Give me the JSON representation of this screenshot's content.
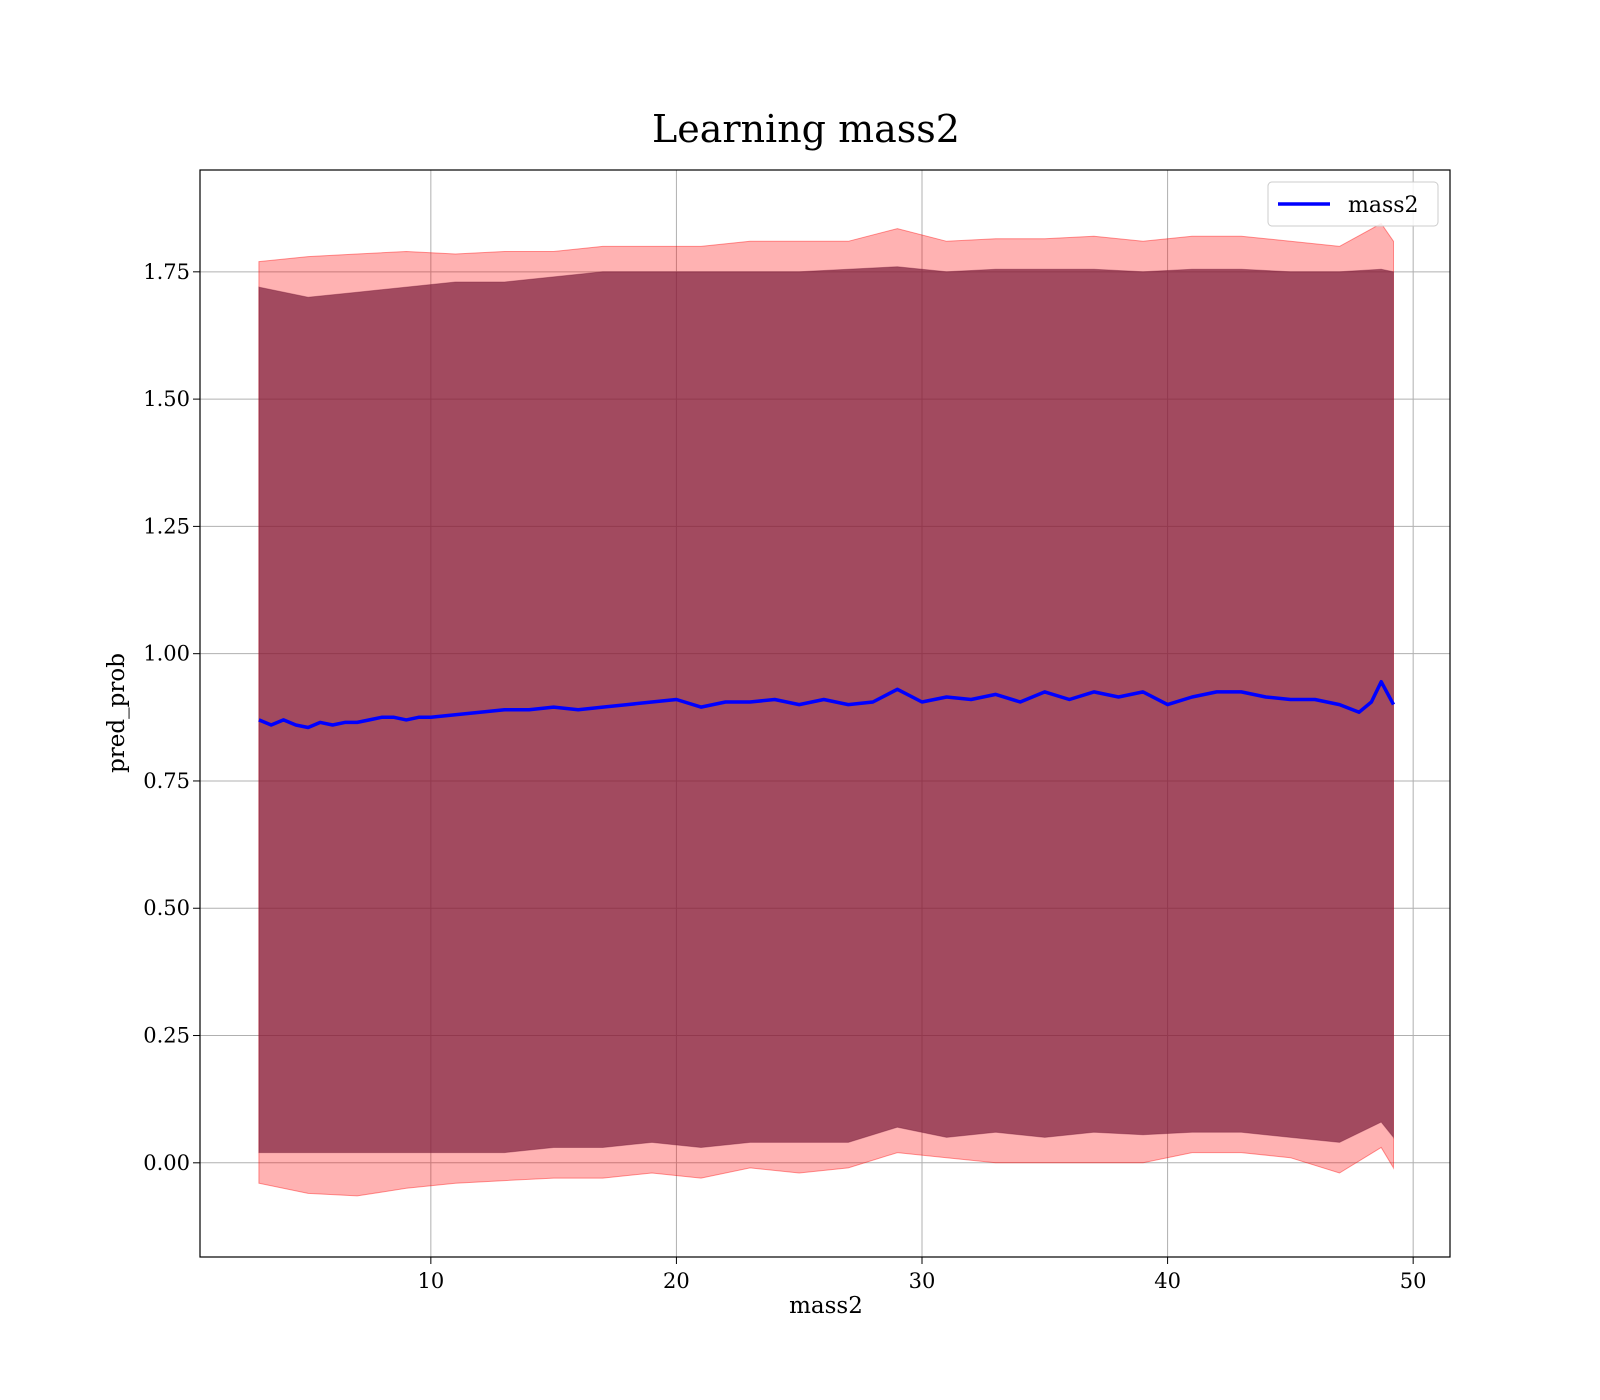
{
  "chart_data": {
    "type": "line",
    "title": "Learning mass2",
    "xlabel": "mass2",
    "ylabel": "pred_prob",
    "xlim": [
      0.6,
      51.5
    ],
    "ylim": [
      -0.185,
      1.95
    ],
    "xticks": [
      10,
      20,
      30,
      40,
      50
    ],
    "yticks": [
      0.0,
      0.25,
      0.5,
      0.75,
      1.0,
      1.25,
      1.5,
      1.75
    ],
    "xtick_labels": [
      "10",
      "20",
      "30",
      "40",
      "50"
    ],
    "ytick_labels": [
      "0.00",
      "0.25",
      "0.50",
      "0.75",
      "1.00",
      "1.25",
      "1.50",
      "1.75"
    ],
    "grid": true,
    "legend": {
      "placement": "top-right",
      "entries": [
        "mass2"
      ]
    },
    "series": [
      {
        "name": "mass2",
        "kind": "line",
        "color": "#0000ff",
        "x": [
          3.0,
          3.5,
          4.0,
          4.5,
          5.0,
          5.5,
          6.0,
          6.5,
          7.0,
          7.5,
          8.0,
          8.5,
          9.0,
          9.5,
          10.0,
          11.0,
          12.0,
          13.0,
          14.0,
          15.0,
          16.0,
          17.0,
          18.0,
          19.0,
          20.0,
          21.0,
          22.0,
          23.0,
          24.0,
          25.0,
          26.0,
          27.0,
          28.0,
          29.0,
          30.0,
          31.0,
          32.0,
          33.0,
          34.0,
          35.0,
          36.0,
          37.0,
          38.0,
          39.0,
          40.0,
          41.0,
          42.0,
          43.0,
          44.0,
          45.0,
          46.0,
          47.0,
          47.8,
          48.3,
          48.7,
          49.2
        ],
        "y": [
          0.87,
          0.86,
          0.87,
          0.86,
          0.855,
          0.865,
          0.86,
          0.865,
          0.865,
          0.87,
          0.875,
          0.875,
          0.87,
          0.875,
          0.875,
          0.88,
          0.885,
          0.89,
          0.89,
          0.895,
          0.89,
          0.895,
          0.9,
          0.905,
          0.91,
          0.895,
          0.905,
          0.905,
          0.91,
          0.9,
          0.91,
          0.9,
          0.905,
          0.93,
          0.905,
          0.915,
          0.91,
          0.92,
          0.905,
          0.925,
          0.91,
          0.925,
          0.915,
          0.925,
          0.9,
          0.915,
          0.925,
          0.925,
          0.915,
          0.91,
          0.91,
          0.9,
          0.885,
          0.905,
          0.945,
          0.9
        ]
      },
      {
        "name": "",
        "kind": "band",
        "color": "#ff0000",
        "opacity": 0.3,
        "x": [
          3.0,
          5.0,
          7.0,
          9.0,
          11.0,
          13.0,
          15.0,
          17.0,
          19.0,
          21.0,
          23.0,
          25.0,
          27.0,
          29.0,
          31.0,
          33.0,
          35.0,
          37.0,
          39.0,
          41.0,
          43.0,
          45.0,
          47.0,
          48.7,
          49.2
        ],
        "lower": [
          -0.04,
          -0.06,
          -0.065,
          -0.05,
          -0.04,
          -0.035,
          -0.03,
          -0.03,
          -0.02,
          -0.03,
          -0.01,
          -0.02,
          -0.01,
          0.02,
          0.01,
          0.0,
          0.0,
          0.0,
          0.0,
          0.02,
          0.02,
          0.01,
          -0.02,
          0.03,
          -0.01
        ],
        "upper": [
          1.77,
          1.78,
          1.785,
          1.79,
          1.785,
          1.79,
          1.79,
          1.8,
          1.8,
          1.8,
          1.81,
          1.81,
          1.81,
          1.835,
          1.81,
          1.815,
          1.815,
          1.82,
          1.81,
          1.82,
          1.82,
          1.81,
          1.8,
          1.845,
          1.81
        ]
      },
      {
        "name": "",
        "kind": "band",
        "color": "#7a1e3c",
        "opacity": 0.7,
        "x": [
          3.0,
          5.0,
          7.0,
          9.0,
          11.0,
          13.0,
          15.0,
          17.0,
          19.0,
          21.0,
          23.0,
          25.0,
          27.0,
          29.0,
          31.0,
          33.0,
          35.0,
          37.0,
          39.0,
          41.0,
          43.0,
          45.0,
          47.0,
          48.7,
          49.2
        ],
        "lower": [
          0.02,
          0.02,
          0.02,
          0.02,
          0.02,
          0.02,
          0.03,
          0.03,
          0.04,
          0.03,
          0.04,
          0.04,
          0.04,
          0.07,
          0.05,
          0.06,
          0.05,
          0.06,
          0.055,
          0.06,
          0.06,
          0.05,
          0.04,
          0.08,
          0.05
        ],
        "upper": [
          1.72,
          1.7,
          1.71,
          1.72,
          1.73,
          1.73,
          1.74,
          1.75,
          1.75,
          1.75,
          1.75,
          1.75,
          1.755,
          1.76,
          1.75,
          1.755,
          1.755,
          1.755,
          1.75,
          1.755,
          1.755,
          1.75,
          1.75,
          1.755,
          1.75
        ]
      }
    ]
  }
}
